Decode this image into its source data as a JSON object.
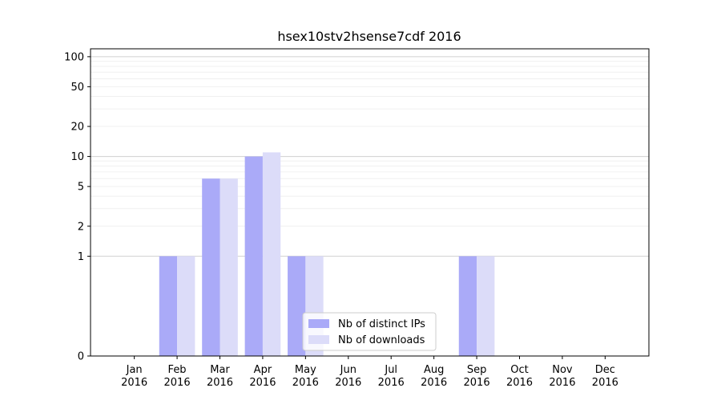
{
  "chart_data": {
    "type": "bar",
    "title": "hsex10stv2hsense7cdf 2016",
    "xlabel": "",
    "ylabel": "",
    "y_scale": "symlog",
    "ylim": [
      0,
      120
    ],
    "y_ticks": [
      0,
      1,
      2,
      5,
      10,
      20,
      50,
      100
    ],
    "y_tick_labels": [
      "0",
      "1",
      "2",
      "5",
      "10",
      "20",
      "50",
      "100"
    ],
    "categories": [
      [
        "Jan",
        "2016"
      ],
      [
        "Feb",
        "2016"
      ],
      [
        "Mar",
        "2016"
      ],
      [
        "Apr",
        "2016"
      ],
      [
        "May",
        "2016"
      ],
      [
        "Jun",
        "2016"
      ],
      [
        "Jul",
        "2016"
      ],
      [
        "Aug",
        "2016"
      ],
      [
        "Sep",
        "2016"
      ],
      [
        "Oct",
        "2016"
      ],
      [
        "Nov",
        "2016"
      ],
      [
        "Dec",
        "2016"
      ]
    ],
    "series": [
      {
        "name": "Nb of distinct IPs",
        "color": "#aaaaf8",
        "values": [
          0,
          1,
          6,
          10,
          1,
          0,
          0,
          0,
          1,
          0,
          0,
          0
        ]
      },
      {
        "name": "Nb of downloads",
        "color": "#dcdcf9",
        "values": [
          0,
          1,
          6,
          11,
          1,
          0,
          0,
          0,
          1,
          0,
          0,
          0
        ]
      }
    ],
    "grid": true,
    "legend_position": "lower-center"
  }
}
